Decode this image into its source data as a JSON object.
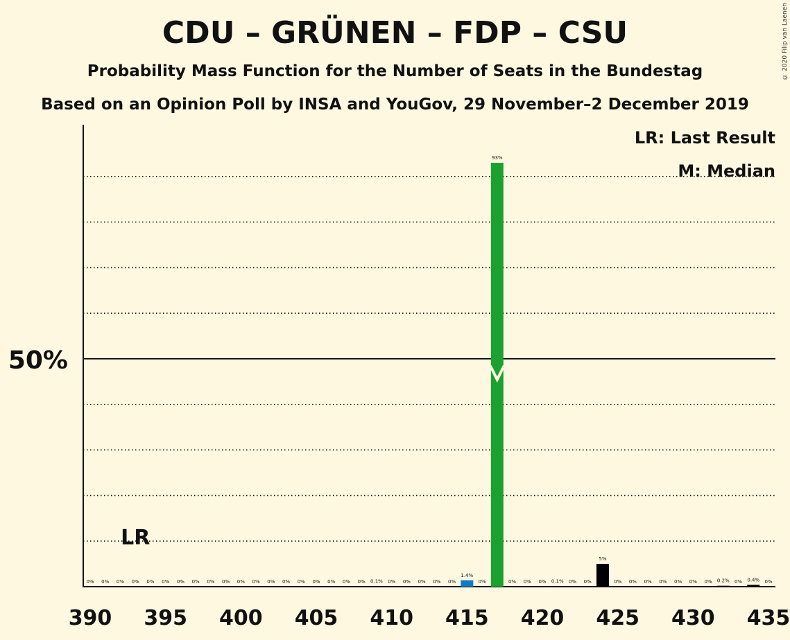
{
  "header": {
    "title": "CDU – GRÜNEN – FDP – CSU",
    "subtitle": "Probability Mass Function for the Number of Seats in the Bundestag",
    "source": "Based on an Opinion Poll by INSA and YouGov, 29 November–2 December 2019",
    "copyright": "© 2020 Filip van Laenen"
  },
  "legend": {
    "last_result": "LR: Last Result",
    "median": "M: Median"
  },
  "colors": {
    "background": "#fff8e1",
    "median_bar": "#1aa130",
    "last_bar": "#0f7ac8",
    "other_bar": "#000000"
  },
  "chart_data": {
    "type": "bar",
    "x": [
      390,
      391,
      392,
      393,
      394,
      395,
      396,
      397,
      398,
      399,
      400,
      401,
      402,
      403,
      404,
      405,
      406,
      407,
      408,
      409,
      410,
      411,
      412,
      413,
      414,
      415,
      416,
      417,
      418,
      419,
      420,
      421,
      422,
      423,
      424,
      425,
      426,
      427,
      428,
      429,
      430,
      431,
      432,
      433,
      434,
      435
    ],
    "values": [
      0,
      0,
      0,
      0,
      0,
      0,
      0,
      0,
      0,
      0,
      0,
      0,
      0,
      0,
      0,
      0,
      0,
      0,
      0,
      0.1,
      0,
      0,
      0,
      0,
      0,
      1.4,
      0,
      93,
      0,
      0,
      0,
      0.1,
      0,
      0,
      5,
      0,
      0,
      0,
      0,
      0,
      0,
      0,
      0.2,
      0,
      0.4,
      0
    ],
    "labels": [
      "0%",
      "0%",
      "0%",
      "0%",
      "0%",
      "0%",
      "0%",
      "0%",
      "0%",
      "0%",
      "0%",
      "0%",
      "0%",
      "0%",
      "0%",
      "0%",
      "0%",
      "0%",
      "0%",
      "0.1%",
      "0%",
      "0%",
      "0%",
      "0%",
      "0%",
      "1.4%",
      "0%",
      "93%",
      "0%",
      "0%",
      "0%",
      "0.1%",
      "0%",
      "0%",
      "5%",
      "0%",
      "0%",
      "0%",
      "0%",
      "0%",
      "0%",
      "0%",
      "0.2%",
      "0%",
      "0.4%",
      "0%"
    ],
    "x_ticks": [
      390,
      395,
      400,
      405,
      410,
      415,
      420,
      425,
      430,
      435
    ],
    "y_tick_label": "50%",
    "ylim": [
      0,
      100
    ],
    "last_result": 393,
    "last_result_label": "LR",
    "median": 417,
    "highlight_last": 415,
    "grid": "dotted every 10%"
  }
}
